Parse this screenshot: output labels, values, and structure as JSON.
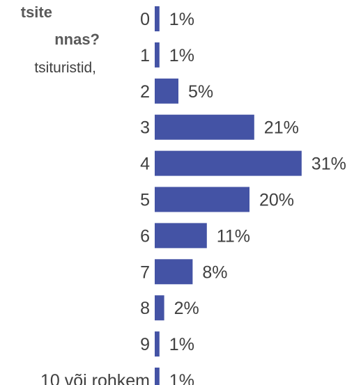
{
  "question": {
    "line1": "tsite",
    "line2": "nnas?",
    "line3": "tsituristid,"
  },
  "chart_data": {
    "type": "bar",
    "orientation": "horizontal",
    "categories": [
      "0",
      "1",
      "2",
      "3",
      "4",
      "5",
      "6",
      "7",
      "8",
      "9",
      "10 või rohkem"
    ],
    "values": [
      1,
      1,
      5,
      21,
      31,
      20,
      11,
      8,
      2,
      1,
      1
    ],
    "value_labels": [
      "1%",
      "1%",
      "5%",
      "21%",
      "31%",
      "20%",
      "11%",
      "8%",
      "2%",
      "1%",
      "1%"
    ],
    "unit": "%",
    "bar_color": "#4453a5",
    "grid": false,
    "legend": "none"
  }
}
